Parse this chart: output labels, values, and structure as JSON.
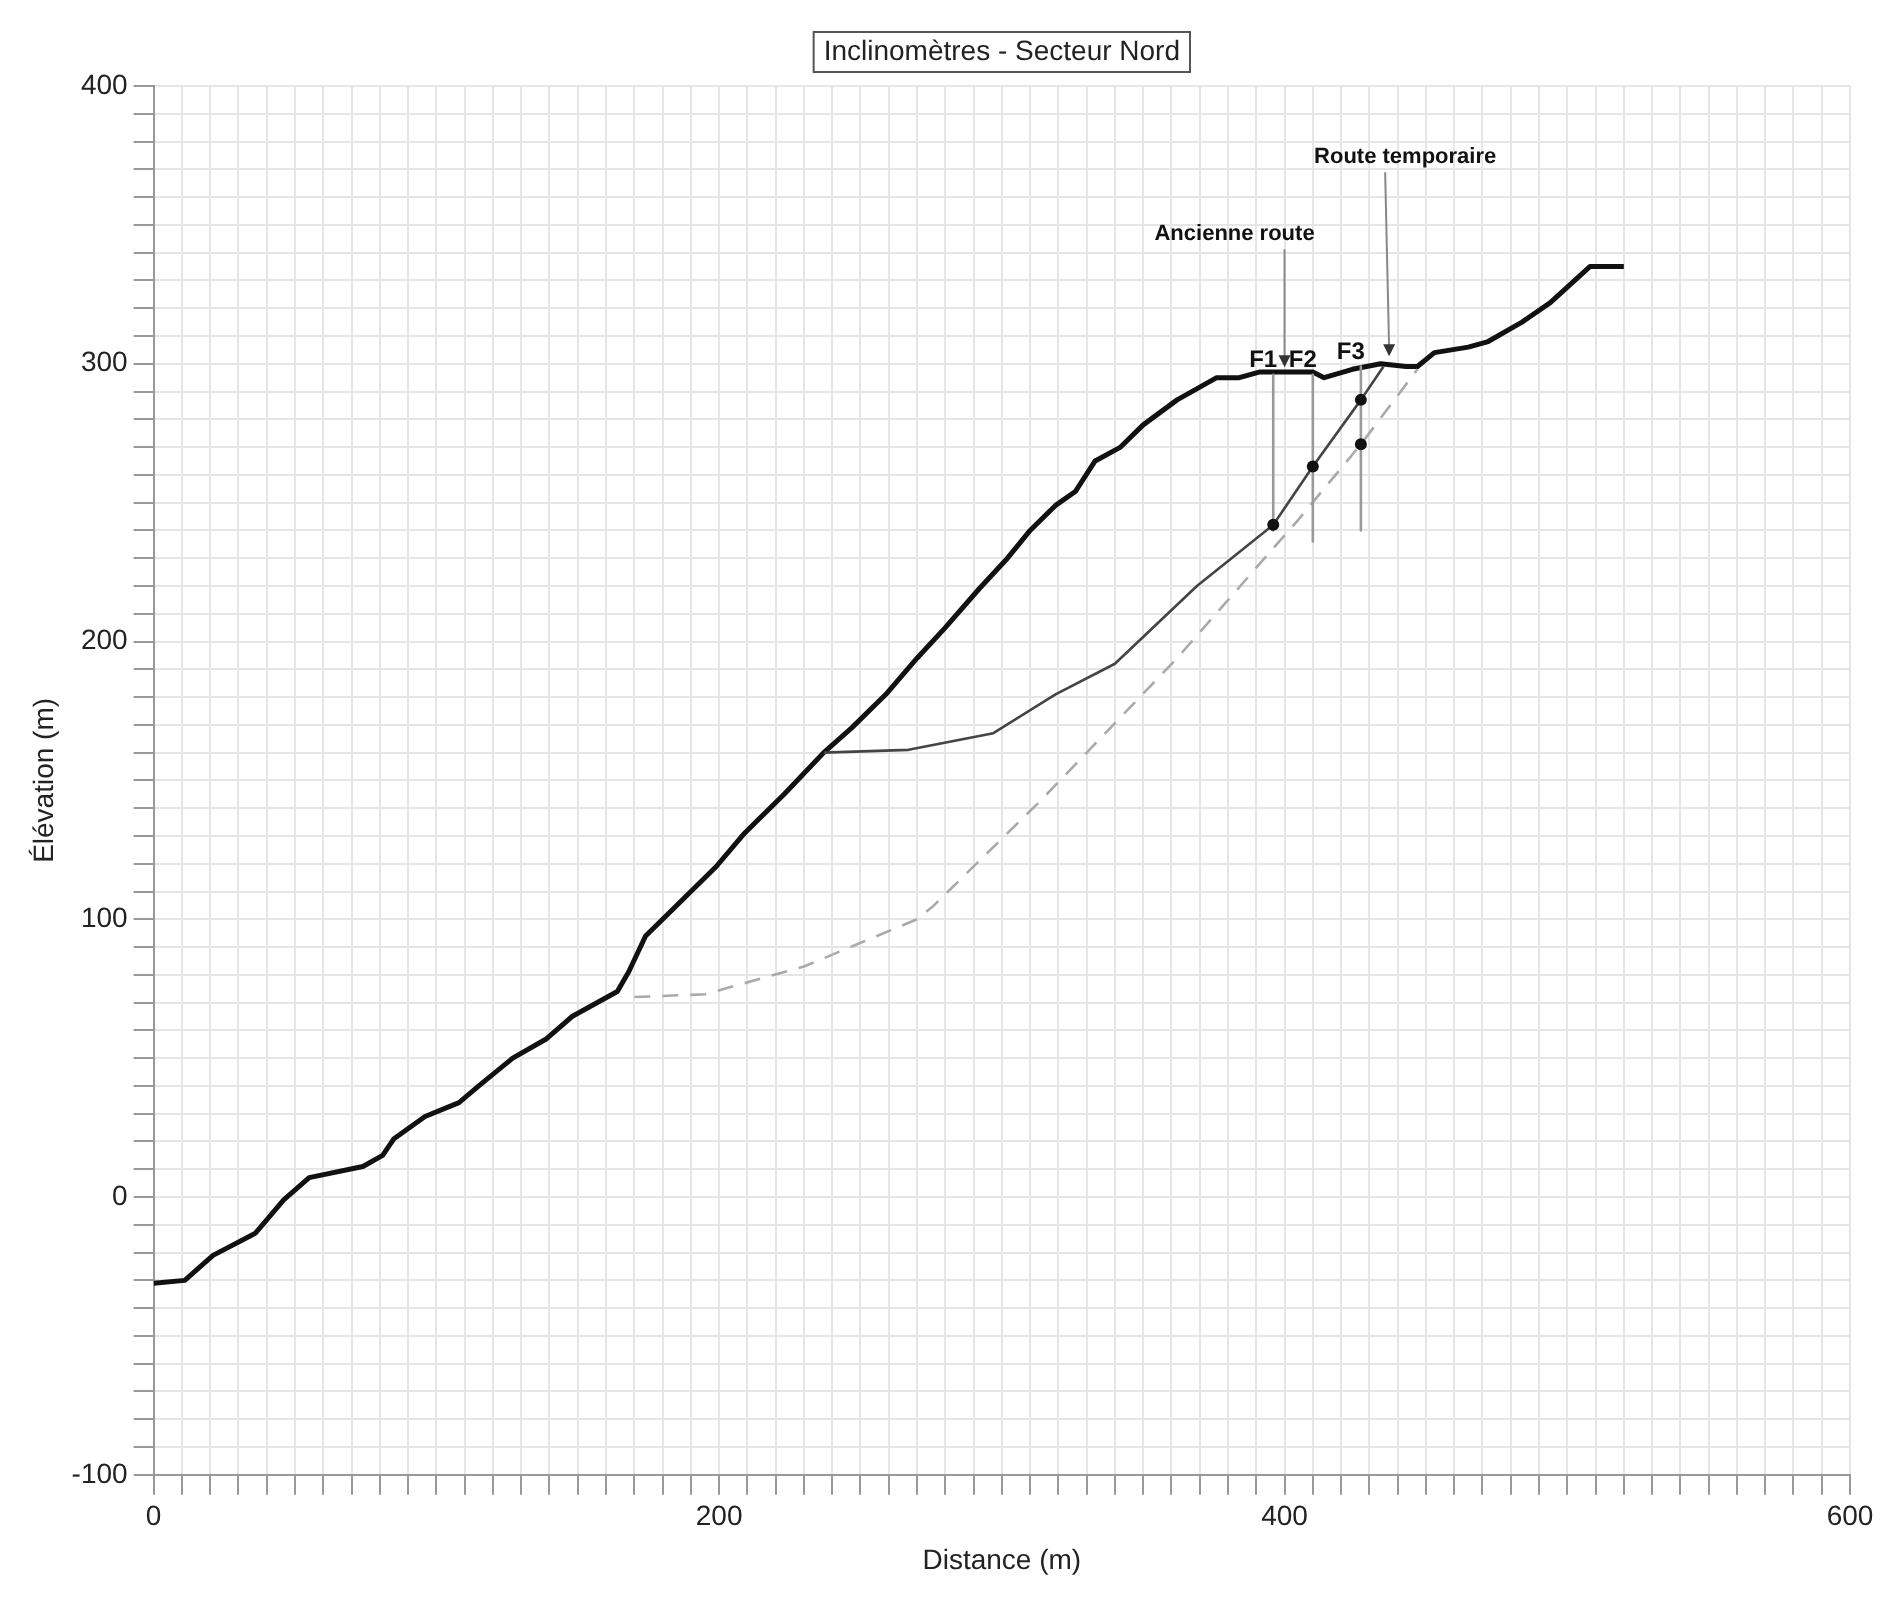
{
  "chart_data": {
    "type": "line",
    "title": "Inclinomètres - Secteur Nord",
    "xlabel": "Distance (m)",
    "ylabel": "Élévation (m)",
    "xlim": [
      0,
      600
    ],
    "ylim": [
      -100,
      400
    ],
    "xticks": [
      0,
      {
        "value": 10,
        "label": null
      },
      {
        "value": 20,
        "label": null
      },
      {
        "value": 30,
        "label": null
      },
      {
        "value": 40,
        "label": null
      },
      {
        "value": 50,
        "label": null
      },
      {
        "value": 60,
        "label": null
      },
      {
        "value": 70,
        "label": null
      },
      {
        "value": 80,
        "label": null
      },
      {
        "value": 90,
        "label": null
      },
      {
        "value": 100,
        "label": null
      },
      {
        "value": 110,
        "label": null
      },
      {
        "value": 120,
        "label": null
      },
      {
        "value": 130,
        "label": null
      },
      {
        "value": 140,
        "label": null
      },
      {
        "value": 150,
        "label": null
      },
      {
        "value": 160,
        "label": null
      },
      {
        "value": 170,
        "label": null
      },
      {
        "value": 180,
        "label": null
      },
      {
        "value": 190,
        "label": null
      },
      200,
      {
        "value": 210,
        "label": null
      },
      {
        "value": 220,
        "label": null
      },
      {
        "value": 230,
        "label": null
      },
      {
        "value": 240,
        "label": null
      },
      {
        "value": 250,
        "label": null
      },
      {
        "value": 260,
        "label": null
      },
      {
        "value": 270,
        "label": null
      },
      {
        "value": 280,
        "label": null
      },
      {
        "value": 290,
        "label": null
      },
      {
        "value": 300,
        "label": null
      },
      {
        "value": 310,
        "label": null
      },
      {
        "value": 320,
        "label": null
      },
      {
        "value": 330,
        "label": null
      },
      {
        "value": 340,
        "label": null
      },
      {
        "value": 350,
        "label": null
      },
      {
        "value": 360,
        "label": null
      },
      {
        "value": 370,
        "label": null
      },
      {
        "value": 380,
        "label": null
      },
      {
        "value": 390,
        "label": null
      },
      400,
      {
        "value": 410,
        "label": null
      },
      {
        "value": 420,
        "label": null
      },
      {
        "value": 430,
        "label": null
      },
      {
        "value": 440,
        "label": null
      },
      {
        "value": 450,
        "label": null
      },
      {
        "value": 460,
        "label": null
      },
      {
        "value": 470,
        "label": null
      },
      {
        "value": 480,
        "label": null
      },
      {
        "value": 490,
        "label": null
      },
      {
        "value": 500,
        "label": null
      },
      {
        "value": 510,
        "label": null
      },
      {
        "value": 520,
        "label": null
      },
      {
        "value": 530,
        "label": null
      },
      {
        "value": 540,
        "label": null
      },
      {
        "value": 550,
        "label": null
      },
      {
        "value": 560,
        "label": null
      },
      {
        "value": 570,
        "label": null
      },
      {
        "value": 580,
        "label": null
      },
      {
        "value": 590,
        "label": null
      },
      600
    ],
    "yticks": [
      -100,
      {
        "value": -90,
        "label": null
      },
      {
        "value": -80,
        "label": null
      },
      {
        "value": -70,
        "label": null
      },
      {
        "value": -60,
        "label": null
      },
      {
        "value": -50,
        "label": null
      },
      {
        "value": -40,
        "label": null
      },
      {
        "value": -30,
        "label": null
      },
      {
        "value": -20,
        "label": null
      },
      {
        "value": -10,
        "label": null
      },
      0,
      {
        "value": 10,
        "label": null
      },
      {
        "value": 20,
        "label": null
      },
      {
        "value": 30,
        "label": null
      },
      {
        "value": 40,
        "label": null
      },
      {
        "value": 50,
        "label": null
      },
      {
        "value": 60,
        "label": null
      },
      {
        "value": 70,
        "label": null
      },
      {
        "value": 80,
        "label": null
      },
      {
        "value": 90,
        "label": null
      },
      100,
      {
        "value": 110,
        "label": null
      },
      {
        "value": 120,
        "label": null
      },
      {
        "value": 130,
        "label": null
      },
      {
        "value": 140,
        "label": null
      },
      {
        "value": 150,
        "label": null
      },
      {
        "value": 160,
        "label": null
      },
      {
        "value": 170,
        "label": null
      },
      {
        "value": 180,
        "label": null
      },
      {
        "value": 190,
        "label": null
      },
      200,
      {
        "value": 210,
        "label": null
      },
      {
        "value": 220,
        "label": null
      },
      {
        "value": 230,
        "label": null
      },
      {
        "value": 240,
        "label": null
      },
      {
        "value": 250,
        "label": null
      },
      {
        "value": 260,
        "label": null
      },
      {
        "value": 270,
        "label": null
      },
      {
        "value": 280,
        "label": null
      },
      {
        "value": 290,
        "label": null
      },
      300,
      {
        "value": 310,
        "label": null
      },
      {
        "value": 320,
        "label": null
      },
      {
        "value": 330,
        "label": null
      },
      {
        "value": 340,
        "label": null
      },
      {
        "value": 350,
        "label": null
      },
      {
        "value": 360,
        "label": null
      },
      {
        "value": 370,
        "label": null
      },
      {
        "value": 380,
        "label": null
      },
      {
        "value": 390,
        "label": null
      },
      400
    ],
    "grid": true,
    "legend": false,
    "series": [
      {
        "color": "#111111",
        "line_style": "solid",
        "x": [
          0,
          11,
          21,
          36,
          46,
          55,
          74,
          81,
          85,
          96,
          108,
          115,
          127,
          139,
          148,
          164,
          168,
          174,
          184,
          199,
          209,
          223,
          237,
          247,
          259,
          270,
          280,
          292,
          302,
          310,
          319,
          326,
          333,
          342,
          350,
          362,
          376,
          384,
          391,
          410,
          414,
          424,
          434,
          443,
          447,
          453,
          465,
          472,
          484,
          494,
          508,
          520
        ],
        "values": [
          -31,
          -30,
          -21,
          -13,
          -1,
          7,
          11,
          15,
          21,
          29,
          34,
          40,
          50,
          57,
          65,
          74,
          81,
          94,
          104,
          119,
          131,
          145,
          160,
          169,
          181,
          194,
          205,
          219,
          230,
          240,
          249,
          254,
          265,
          270,
          278,
          287,
          295,
          295,
          297,
          297,
          295,
          298,
          300,
          299,
          299,
          304,
          306,
          308,
          315,
          322,
          335,
          335
        ]
      },
      {
        "color": "#444444",
        "line_style": "solid",
        "x": [
          237,
          267,
          297,
          319,
          340,
          369,
          396,
          410,
          427,
          435
        ],
        "values": [
          160,
          161,
          167,
          181,
          192,
          220,
          242,
          263,
          287,
          299
        ]
      },
      {
        "color": "#aaaaaa",
        "line_style": "dashed",
        "x": [
          170,
          195,
          230,
          270,
          276,
          314,
          362,
          405,
          427,
          447
        ],
        "values": [
          72,
          73,
          83,
          100,
          105,
          143,
          194,
          244,
          271,
          298
        ]
      },
      {
        "color": "#999999",
        "line_style": "solid",
        "x": [
          396,
          396
        ],
        "values": [
          296,
          240
        ]
      },
      {
        "color": "#999999",
        "line_style": "solid",
        "x": [
          410,
          410
        ],
        "values": [
          296,
          236
        ]
      },
      {
        "color": "#999999",
        "line_style": "solid",
        "x": [
          427,
          427
        ],
        "values": [
          299,
          240
        ]
      },
      {
        "type": "scatter",
        "color": "#111111",
        "marker": "circle",
        "x": [
          396,
          410,
          427,
          427
        ],
        "values": [
          242,
          263,
          287,
          271
        ]
      }
    ],
    "annotations": [
      {
        "text": "Ancienne route",
        "x": 400,
        "y": 298
      },
      {
        "text": "Route temporaire",
        "x": 437,
        "y": 302
      },
      {
        "text": "F1",
        "x": 396,
        "y": 296
      },
      {
        "text": "F2",
        "x": 410,
        "y": 296
      },
      {
        "text": "F3",
        "x": 427,
        "y": 299
      }
    ]
  }
}
